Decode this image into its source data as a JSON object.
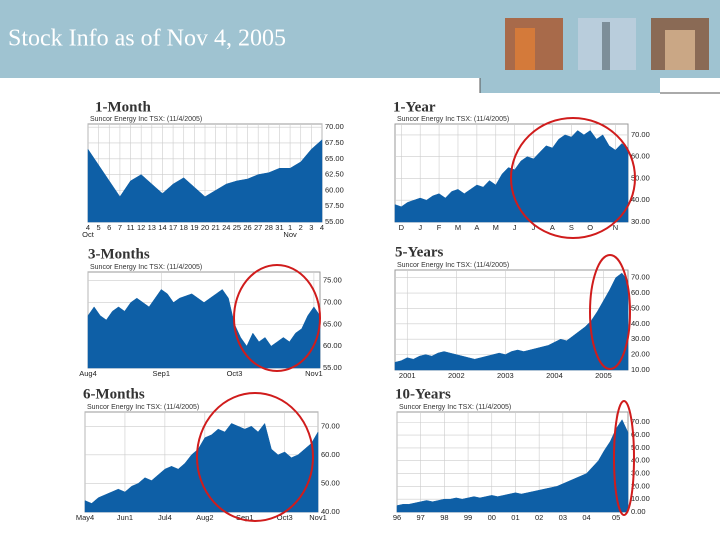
{
  "header": {
    "title": "Stock Info as of Nov 4, 2005"
  },
  "chart_data": [
    {
      "type": "area",
      "title": "1-Month",
      "subtitle": "Suncor Energy Inc TSX: (11/4/2005)",
      "color": "#0e5fa6",
      "grid": true,
      "values": [
        66.5,
        64,
        61.5,
        59,
        61.5,
        62.5,
        61,
        59.5,
        61,
        62,
        60.5,
        59,
        60,
        61,
        61.5,
        61.8,
        62.5,
        62.8,
        63.5,
        63.5,
        64.5,
        66.5,
        68
      ],
      "xlim": [
        0,
        22
      ],
      "xticks": [
        {
          "value": 0,
          "label": "4"
        },
        {
          "value": 1,
          "label": "5"
        },
        {
          "value": 2,
          "label": "6"
        },
        {
          "value": 3,
          "label": "7"
        },
        {
          "value": 4,
          "label": "11"
        },
        {
          "value": 5,
          "label": "12"
        },
        {
          "value": 6,
          "label": "13"
        },
        {
          "value": 7,
          "label": "14"
        },
        {
          "value": 8,
          "label": "17"
        },
        {
          "value": 9,
          "label": "18"
        },
        {
          "value": 10,
          "label": "19"
        },
        {
          "value": 11,
          "label": "20"
        },
        {
          "value": 12,
          "label": "21"
        },
        {
          "value": 13,
          "label": "24"
        },
        {
          "value": 14,
          "label": "25"
        },
        {
          "value": 15,
          "label": "26"
        },
        {
          "value": 16,
          "label": "27"
        },
        {
          "value": 17,
          "label": "28"
        },
        {
          "value": 18,
          "label": "31"
        },
        {
          "value": 19,
          "label": "1"
        },
        {
          "value": 20,
          "label": "2"
        },
        {
          "value": 21,
          "label": "3"
        },
        {
          "value": 22,
          "label": "4"
        }
      ],
      "xsublabels": [
        {
          "value": 0,
          "label": "Oct"
        },
        {
          "value": 19,
          "label": "Nov"
        }
      ],
      "ylim": [
        55,
        70.5
      ],
      "yticks": [
        {
          "value": 55,
          "label": "55.00"
        },
        {
          "value": 57.5,
          "label": "57.50"
        },
        {
          "value": 60,
          "label": "60.00"
        },
        {
          "value": 62.5,
          "label": "62.50"
        },
        {
          "value": 65,
          "label": "65.00"
        },
        {
          "value": 67.5,
          "label": "67.50"
        },
        {
          "value": 70,
          "label": "70.00"
        }
      ]
    },
    {
      "type": "area",
      "title": "1-Year",
      "subtitle": "Suncor Energy Inc TSX: (11/4/2005)",
      "color": "#0e5fa6",
      "grid": true,
      "values": [
        38,
        37,
        39,
        40,
        41,
        40,
        42,
        43,
        41,
        44,
        45,
        43,
        45,
        47,
        46,
        49,
        47,
        52,
        55,
        54,
        58,
        60,
        59,
        62,
        65,
        64,
        68,
        70,
        69,
        72,
        70,
        72,
        68,
        70,
        65,
        63,
        66,
        64
      ],
      "xlim": [
        0,
        37
      ],
      "xticks": [
        {
          "value": 1,
          "label": "D"
        },
        {
          "value": 4,
          "label": "J"
        },
        {
          "value": 7,
          "label": "F"
        },
        {
          "value": 10,
          "label": "M"
        },
        {
          "value": 13,
          "label": "A"
        },
        {
          "value": 16,
          "label": "M"
        },
        {
          "value": 19,
          "label": "J"
        },
        {
          "value": 22,
          "label": "J"
        },
        {
          "value": 25,
          "label": "A"
        },
        {
          "value": 28,
          "label": "S"
        },
        {
          "value": 31,
          "label": "O"
        },
        {
          "value": 35,
          "label": "N"
        }
      ],
      "ylim": [
        30,
        75
      ],
      "yticks": [
        {
          "value": 30,
          "label": "30.00"
        },
        {
          "value": 40,
          "label": "40.00"
        },
        {
          "value": 50,
          "label": "50.00"
        },
        {
          "value": 60,
          "label": "60.00"
        },
        {
          "value": 70,
          "label": "70.00"
        }
      ]
    },
    {
      "type": "area",
      "title": "3-Months",
      "subtitle": "Suncor Energy Inc TSX: (11/4/2005)",
      "color": "#0e5fa6",
      "grid": true,
      "values": [
        67,
        69,
        67,
        66,
        68,
        69,
        68,
        70,
        71,
        70,
        69,
        71,
        73,
        72,
        70,
        71,
        71.5,
        72,
        71,
        70,
        71,
        72,
        73,
        71,
        65,
        62,
        60,
        63,
        61,
        62,
        60,
        61,
        62,
        61,
        63,
        64,
        67,
        69,
        67
      ],
      "xlim": [
        0,
        38
      ],
      "xticks": [
        {
          "value": 0,
          "label": "Aug4"
        },
        {
          "value": 12,
          "label": "Sep1"
        },
        {
          "value": 24,
          "label": "Oct3"
        },
        {
          "value": 37,
          "label": "Nov1"
        }
      ],
      "ylim": [
        55,
        77
      ],
      "yticks": [
        {
          "value": 55,
          "label": "55.00"
        },
        {
          "value": 60,
          "label": "60.00"
        },
        {
          "value": 65,
          "label": "65.00"
        },
        {
          "value": 70,
          "label": "70.00"
        },
        {
          "value": 75,
          "label": "75.00"
        }
      ]
    },
    {
      "type": "area",
      "title": "5-Years",
      "subtitle": "Suncor Energy Inc TSX: (11/4/2005)",
      "color": "#0e5fa6",
      "grid": true,
      "values": [
        15,
        16,
        18,
        17,
        19,
        20,
        19,
        21,
        22,
        21,
        20,
        19,
        18,
        17,
        18,
        19,
        20,
        21,
        20,
        22,
        23,
        22,
        23,
        24,
        25,
        26,
        28,
        30,
        29,
        32,
        35,
        38,
        42,
        48,
        55,
        62,
        70,
        73,
        68
      ],
      "xlim": [
        0,
        38
      ],
      "xticks": [
        {
          "value": 2,
          "label": "2001"
        },
        {
          "value": 10,
          "label": "2002"
        },
        {
          "value": 18,
          "label": "2003"
        },
        {
          "value": 26,
          "label": "2004"
        },
        {
          "value": 34,
          "label": "2005"
        }
      ],
      "ylim": [
        10,
        75
      ],
      "yticks": [
        {
          "value": 10,
          "label": "10.00"
        },
        {
          "value": 20,
          "label": "20.00"
        },
        {
          "value": 30,
          "label": "30.00"
        },
        {
          "value": 40,
          "label": "40.00"
        },
        {
          "value": 50,
          "label": "50.00"
        },
        {
          "value": 60,
          "label": "60.00"
        },
        {
          "value": 70,
          "label": "70.00"
        }
      ]
    },
    {
      "type": "area",
      "title": "6-Months",
      "subtitle": "Suncor Energy Inc TSX: (11/4/2005)",
      "color": "#0e5fa6",
      "grid": true,
      "values": [
        44,
        43,
        45,
        46,
        47,
        48,
        47,
        49,
        50,
        52,
        51,
        53,
        55,
        56,
        55,
        57,
        60,
        62,
        66,
        67,
        69,
        68,
        71,
        70,
        69,
        70,
        68,
        71,
        62,
        60,
        61,
        59,
        60,
        62,
        64,
        68
      ],
      "xlim": [
        0,
        35
      ],
      "xticks": [
        {
          "value": 0,
          "label": "May4"
        },
        {
          "value": 6,
          "label": "Jun1"
        },
        {
          "value": 12,
          "label": "Jul4"
        },
        {
          "value": 18,
          "label": "Aug2"
        },
        {
          "value": 24,
          "label": "Sep1"
        },
        {
          "value": 30,
          "label": "Oct3"
        },
        {
          "value": 35,
          "label": "Nov1"
        }
      ],
      "ylim": [
        40,
        75
      ],
      "yticks": [
        {
          "value": 40,
          "label": "40.00"
        },
        {
          "value": 50,
          "label": "50.00"
        },
        {
          "value": 60,
          "label": "60.00"
        },
        {
          "value": 70,
          "label": "70.00"
        }
      ]
    },
    {
      "type": "area",
      "title": "10-Years",
      "subtitle": "Suncor Energy Inc TSX: (11/4/2005)",
      "color": "#0e5fa6",
      "grid": true,
      "values": [
        5,
        6,
        6,
        7,
        8,
        9,
        8,
        9,
        10,
        10,
        11,
        10,
        11,
        12,
        11,
        12,
        13,
        12,
        13,
        14,
        15,
        14,
        15,
        16,
        17,
        18,
        19,
        20,
        22,
        24,
        26,
        28,
        30,
        35,
        40,
        48,
        55,
        65,
        72,
        62
      ],
      "xlim": [
        0,
        39
      ],
      "xticks": [
        {
          "value": 0,
          "label": "96"
        },
        {
          "value": 4,
          "label": "97"
        },
        {
          "value": 8,
          "label": "98"
        },
        {
          "value": 12,
          "label": "99"
        },
        {
          "value": 16,
          "label": "00"
        },
        {
          "value": 20,
          "label": "01"
        },
        {
          "value": 24,
          "label": "02"
        },
        {
          "value": 28,
          "label": "03"
        },
        {
          "value": 32,
          "label": "04"
        },
        {
          "value": 37,
          "label": "05"
        }
      ],
      "ylim": [
        0,
        78
      ],
      "yticks": [
        {
          "value": 0,
          "label": "0.00"
        },
        {
          "value": 10,
          "label": "10.00"
        },
        {
          "value": 20,
          "label": "20.00"
        },
        {
          "value": 30,
          "label": "30.00"
        },
        {
          "value": 40,
          "label": "40.00"
        },
        {
          "value": 50,
          "label": "50.00"
        },
        {
          "value": 60,
          "label": "60.00"
        },
        {
          "value": 70,
          "label": "70.00"
        }
      ]
    }
  ]
}
